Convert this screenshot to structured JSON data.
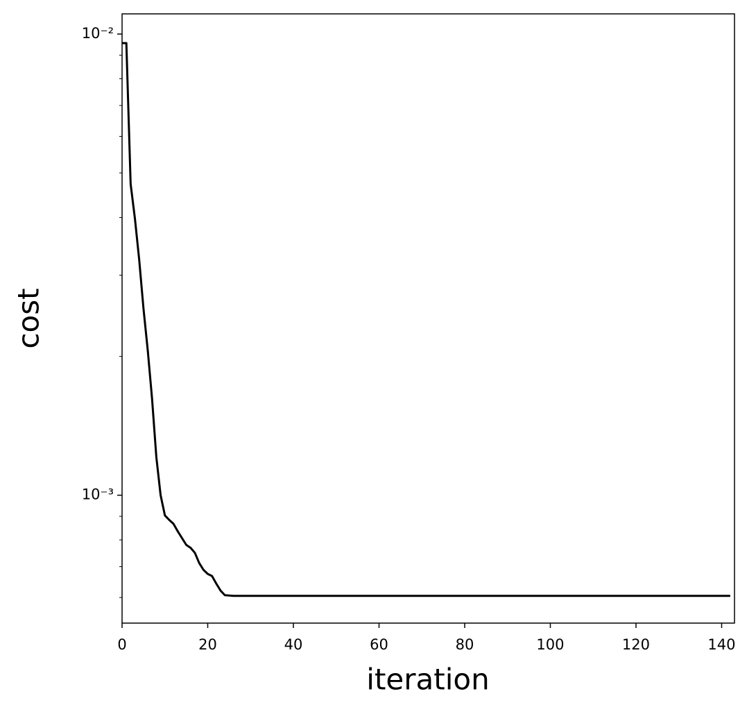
{
  "chart_data": {
    "type": "line",
    "x_label": "iteration",
    "y_label": "cost",
    "ylog": true,
    "xlim": [
      0,
      143
    ],
    "xticks": [
      0,
      20,
      40,
      60,
      80,
      100,
      120,
      140
    ],
    "ylim": [
      0.000528,
      0.01106
    ],
    "yticks": [
      {
        "value": 0.001,
        "label": "10⁻³"
      },
      {
        "value": 0.01,
        "label": "10⁻²"
      }
    ],
    "yminorticks": [
      0.0006,
      0.0007,
      0.0008,
      0.0009,
      0.002,
      0.003,
      0.004,
      0.005,
      0.006,
      0.007,
      0.008,
      0.009
    ],
    "color": "#000000",
    "x": [
      0,
      1,
      2,
      3,
      4,
      5,
      6,
      7,
      8,
      9,
      10,
      11,
      12,
      13,
      14,
      15,
      16,
      17,
      18,
      19,
      20,
      21,
      22,
      23,
      24,
      25,
      26,
      27,
      28,
      29,
      30,
      31,
      32,
      33,
      34,
      35,
      36,
      37,
      38,
      39,
      40,
      41,
      42,
      43,
      44,
      45,
      46,
      47,
      48,
      49,
      50,
      51,
      52,
      53,
      54,
      55,
      56,
      57,
      58,
      59,
      60,
      61,
      62,
      63,
      64,
      65,
      66,
      67,
      68,
      69,
      70,
      71,
      72,
      73,
      74,
      75,
      76,
      77,
      78,
      79,
      80,
      81,
      82,
      83,
      84,
      85,
      86,
      87,
      88,
      89,
      90,
      91,
      92,
      93,
      94,
      95,
      96,
      97,
      98,
      99,
      100,
      101,
      102,
      103,
      104,
      105,
      106,
      107,
      108,
      109,
      110,
      111,
      112,
      113,
      114,
      115,
      116,
      117,
      118,
      119,
      120,
      121,
      122,
      123,
      124,
      125,
      126,
      127,
      128,
      129,
      130,
      131,
      132,
      133,
      134,
      135,
      136,
      137,
      138,
      139,
      140,
      141,
      142
    ],
    "values": [
      0.00956,
      0.00956,
      0.00473,
      0.00398,
      0.00324,
      0.00254,
      0.00206,
      0.00162,
      0.00121,
      0.001,
      0.000904,
      0.000884,
      0.000867,
      0.000835,
      0.000807,
      0.00078,
      0.000769,
      0.00075,
      0.000713,
      0.000689,
      0.000675,
      0.000668,
      0.000643,
      0.000621,
      0.000607,
      0.000606,
      0.000605,
      0.000605,
      0.000605,
      0.000605,
      0.000605,
      0.000605,
      0.000605,
      0.000605,
      0.000605,
      0.000605,
      0.000605,
      0.000605,
      0.000605,
      0.000605,
      0.000605,
      0.000605,
      0.000605,
      0.000605,
      0.000605,
      0.000605,
      0.000605,
      0.000605,
      0.000605,
      0.000605,
      0.000605,
      0.000605,
      0.000605,
      0.000605,
      0.000605,
      0.000605,
      0.000605,
      0.000605,
      0.000605,
      0.000605,
      0.000605,
      0.000605,
      0.000605,
      0.000605,
      0.000605,
      0.000605,
      0.000605,
      0.000605,
      0.000605,
      0.000605,
      0.000605,
      0.000605,
      0.000605,
      0.000605,
      0.000605,
      0.000605,
      0.000605,
      0.000605,
      0.000605,
      0.000605,
      0.000605,
      0.000605,
      0.000605,
      0.000605,
      0.000605,
      0.000605,
      0.000605,
      0.000605,
      0.000605,
      0.000605,
      0.000605,
      0.000605,
      0.000605,
      0.000605,
      0.000605,
      0.000605,
      0.000605,
      0.000605,
      0.000605,
      0.000605,
      0.000605,
      0.000605,
      0.000605,
      0.000605,
      0.000605,
      0.000605,
      0.000605,
      0.000605,
      0.000605,
      0.000605,
      0.000605,
      0.000605,
      0.000605,
      0.000605,
      0.000605,
      0.000605,
      0.000605,
      0.000605,
      0.000605,
      0.000605,
      0.000605,
      0.000605,
      0.000605,
      0.000605,
      0.000605,
      0.000605,
      0.000605,
      0.000605,
      0.000605,
      0.000605,
      0.000605,
      0.000605,
      0.000605,
      0.000605,
      0.000605,
      0.000605,
      0.000605,
      0.000605,
      0.000605,
      0.000605,
      0.000605,
      0.000605,
      0.000605
    ]
  }
}
